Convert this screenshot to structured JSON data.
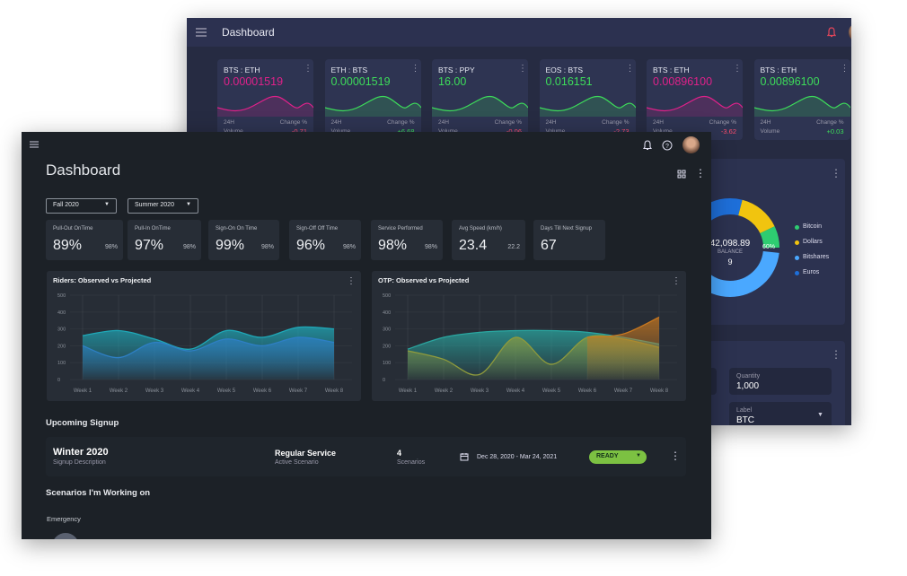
{
  "back": {
    "title": "Dashboard",
    "tickers": [
      {
        "pair": "BTS : ETH",
        "price": "0.00001519",
        "color": "#e0218a",
        "h24": "24H",
        "change_label": "Change %",
        "volume": "Volume",
        "change": "-0.71",
        "change_color": "#ff4d6d"
      },
      {
        "pair": "ETH : BTS",
        "price": "0.00001519",
        "color": "#3ddc5a",
        "h24": "24H",
        "change_label": "Change %",
        "volume": "Volume",
        "change": "+6.68",
        "change_color": "#3ddc5a"
      },
      {
        "pair": "BTS : PPY",
        "price": "16.00",
        "color": "#3ddc5a",
        "h24": "24H",
        "change_label": "Change %",
        "volume": "Volume",
        "change": "-0.06",
        "change_color": "#ff4d6d"
      },
      {
        "pair": "EOS : BTS",
        "price": "0.016151",
        "color": "#3ddc5a",
        "h24": "24H",
        "change_label": "Change %",
        "volume": "Volume",
        "change": "-2.73",
        "change_color": "#ff4d6d"
      },
      {
        "pair": "BTS : ETH",
        "price": "0.00896100",
        "color": "#e0218a",
        "h24": "24H",
        "change_label": "Change %",
        "volume": "Volume",
        "change": "-3.62",
        "change_color": "#ff4d6d"
      },
      {
        "pair": "BTS : ETH",
        "price": "0.00896100",
        "color": "#3ddc5a",
        "h24": "24H",
        "change_label": "Change %",
        "volume": "Volume",
        "change": "+0.03",
        "change_color": "#3ddc5a"
      }
    ],
    "donut": {
      "amount": "42,098.89",
      "caption": "BALANCE",
      "count": "9",
      "share": "60%",
      "legend": [
        {
          "name": "Bitcoin",
          "color": "#2ecc71"
        },
        {
          "name": "Dollars",
          "color": "#f1c40f"
        },
        {
          "name": "Bitshares",
          "color": "#4aa8ff"
        },
        {
          "name": "Euros",
          "color": "#1e6fd9"
        }
      ]
    },
    "form": {
      "quantity_label": "Quantity",
      "quantity": "1,000",
      "label_label": "Label",
      "label": "BTC"
    }
  },
  "front": {
    "title": "Dashboard",
    "filters": [
      "Fall 2020",
      "Summer 2020"
    ],
    "kpis": [
      {
        "label": "Pull-Out OnTime",
        "value": "89%",
        "target": "98%"
      },
      {
        "label": "Pull-In OnTime",
        "value": "97%",
        "target": "98%"
      },
      {
        "label": "Sign-On On Time",
        "value": "99%",
        "target": "98%"
      },
      {
        "label": "Sign-Off Off Time",
        "value": "96%",
        "target": "98%"
      },
      {
        "label": "Service Performed",
        "value": "98%",
        "target": "98%"
      },
      {
        "label": "Avg Speed (km/h)",
        "value": "23.4",
        "target": "22.2"
      },
      {
        "label": "Days Till Next Signup",
        "value": "67"
      }
    ],
    "charts": [
      {
        "type": "area",
        "title": "Riders: Observed vs Projected",
        "categories": [
          "Week 1",
          "Week 2",
          "Week 3",
          "Week 4",
          "Week 5",
          "Week 6",
          "Week 7",
          "Week 8"
        ],
        "ylim": [
          0,
          500
        ],
        "yticks": [
          0,
          100,
          200,
          300,
          400,
          500
        ],
        "series": [
          {
            "color": "#1fa8b8",
            "values": [
              260,
              290,
              240,
              180,
              290,
              250,
              310,
              300
            ]
          },
          {
            "color": "#2e7fc4",
            "values": [
              200,
              130,
              220,
              170,
              240,
              200,
              250,
              220
            ]
          }
        ]
      },
      {
        "type": "area",
        "title": "OTP: Observed vs Projected",
        "categories": [
          "Week 1",
          "Week 2",
          "Week 3",
          "Week 4",
          "Week 5",
          "Week 6",
          "Week 7",
          "Week 8"
        ],
        "ylim": [
          0,
          500
        ],
        "yticks": [
          0,
          100,
          200,
          300,
          400,
          500
        ],
        "series": [
          {
            "color": "#2aa6a0",
            "values": [
              180,
              250,
              280,
              290,
              290,
              280,
              250,
              210
            ]
          },
          {
            "color": "#8f9b3c",
            "values": [
              170,
              120,
              30,
              250,
              90,
              250,
              240,
              190
            ]
          },
          {
            "color": "#c9781f",
            "values": [
              null,
              null,
              null,
              null,
              null,
              250,
              270,
              370
            ]
          }
        ]
      }
    ],
    "upcoming": {
      "heading": "Upcoming Signup",
      "name": "Winter 2020",
      "description": "Signup Description",
      "service": "Regular Service",
      "service_caption": "Active Scenario",
      "count": "4",
      "count_caption": "Scenarios",
      "dates": "Dec 28, 2020 - Mar 24, 2021",
      "status": "READY"
    },
    "scenarios": {
      "heading": "Scenarios I'm Working on",
      "group": "Emergency"
    }
  }
}
